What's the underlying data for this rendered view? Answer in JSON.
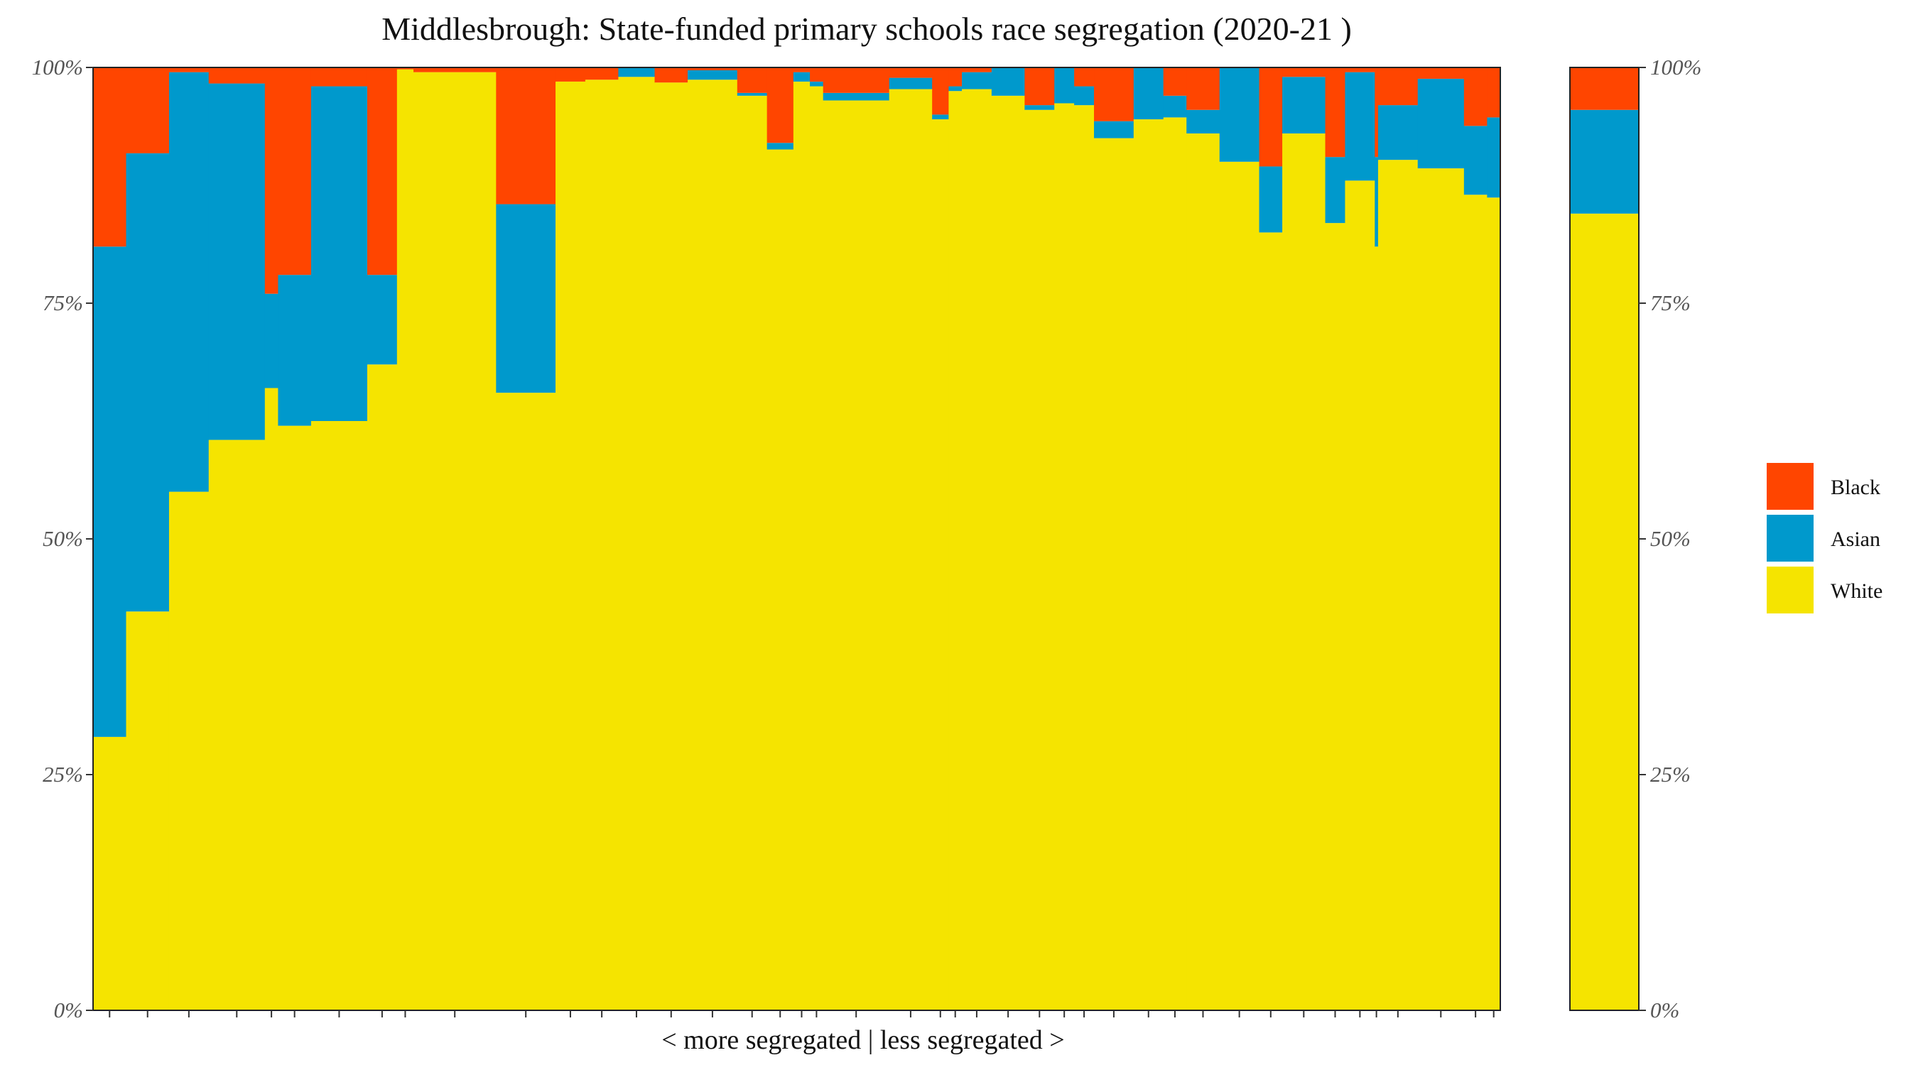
{
  "chart_data": {
    "type": "stacked-bar",
    "title": "Middlesbrough: State-funded primary schools race segregation (2020-21 )",
    "xlabel": "< more segregated | less segregated >",
    "ylabel": "",
    "ylim": [
      0,
      1
    ],
    "yticks": [
      "0%",
      "25%",
      "50%",
      "75%",
      "100%"
    ],
    "legend": {
      "placement": "right",
      "entries": [
        {
          "name": "Black",
          "color": "#FF4500"
        },
        {
          "name": "Asian",
          "color": "#0099CC"
        },
        {
          "name": "White",
          "color": "#F5E400"
        }
      ]
    },
    "colors": {
      "black": "#FF4500",
      "asian": "#0099CC",
      "white": "#F5E400"
    },
    "schools": [
      {
        "w": 1.0,
        "white": 0.29,
        "asian": 0.52,
        "black": 0.19
      },
      {
        "w": 1.3,
        "white": 0.423,
        "asian": 0.486,
        "black": 0.091
      },
      {
        "w": 1.2,
        "white": 0.55,
        "asian": 0.445,
        "black": 0.005
      },
      {
        "w": 1.7,
        "white": 0.605,
        "asian": 0.378,
        "black": 0.017
      },
      {
        "w": 0.4,
        "white": 0.66,
        "asian": 0.1,
        "black": 0.24
      },
      {
        "w": 1.0,
        "white": 0.62,
        "asian": 0.16,
        "black": 0.22
      },
      {
        "w": 1.7,
        "white": 0.625,
        "asian": 0.355,
        "black": 0.02
      },
      {
        "w": 0.9,
        "white": 0.685,
        "asian": 0.095,
        "black": 0.22
      },
      {
        "w": 0.5,
        "white": 0.998,
        "asian": 0.0,
        "black": 0.002
      },
      {
        "w": 2.5,
        "white": 0.995,
        "asian": 0.0,
        "black": 0.005
      },
      {
        "w": 1.8,
        "white": 0.655,
        "asian": 0.2,
        "black": 0.145
      },
      {
        "w": 0.9,
        "white": 0.985,
        "asian": 0.0,
        "black": 0.015
      },
      {
        "w": 1.0,
        "white": 0.987,
        "asian": 0.0,
        "black": 0.013
      },
      {
        "w": 1.1,
        "white": 0.99,
        "asian": 0.01,
        "black": 0.0
      },
      {
        "w": 1.0,
        "white": 0.984,
        "asian": 0.0,
        "black": 0.016
      },
      {
        "w": 1.5,
        "white": 0.987,
        "asian": 0.01,
        "black": 0.003
      },
      {
        "w": 0.9,
        "white": 0.97,
        "asian": 0.003,
        "black": 0.027
      },
      {
        "w": 0.8,
        "white": 0.913,
        "asian": 0.007,
        "black": 0.08
      },
      {
        "w": 0.5,
        "white": 0.985,
        "asian": 0.01,
        "black": 0.005
      },
      {
        "w": 0.4,
        "white": 0.98,
        "asian": 0.005,
        "black": 0.015
      },
      {
        "w": 2.0,
        "white": 0.965,
        "asian": 0.008,
        "black": 0.027
      },
      {
        "w": 1.3,
        "white": 0.977,
        "asian": 0.012,
        "black": 0.011
      },
      {
        "w": 0.5,
        "white": 0.945,
        "asian": 0.005,
        "black": 0.05
      },
      {
        "w": 0.4,
        "white": 0.975,
        "asian": 0.005,
        "black": 0.02
      },
      {
        "w": 0.9,
        "white": 0.977,
        "asian": 0.018,
        "black": 0.005
      },
      {
        "w": 1.0,
        "white": 0.97,
        "asian": 0.03,
        "black": 0.0
      },
      {
        "w": 0.9,
        "white": 0.955,
        "asian": 0.005,
        "black": 0.04
      },
      {
        "w": 0.6,
        "white": 0.962,
        "asian": 0.038,
        "black": 0.0
      },
      {
        "w": 0.6,
        "white": 0.96,
        "asian": 0.02,
        "black": 0.02
      },
      {
        "w": 1.2,
        "white": 0.925,
        "asian": 0.018,
        "black": 0.057
      },
      {
        "w": 0.9,
        "white": 0.945,
        "asian": 0.055,
        "black": 0.0
      },
      {
        "w": 0.7,
        "white": 0.947,
        "asian": 0.023,
        "black": 0.03
      },
      {
        "w": 1.0,
        "white": 0.93,
        "asian": 0.025,
        "black": 0.045
      },
      {
        "w": 1.2,
        "white": 0.9,
        "asian": 0.1,
        "black": 0.0
      },
      {
        "w": 0.7,
        "white": 0.825,
        "asian": 0.07,
        "black": 0.105
      },
      {
        "w": 1.3,
        "white": 0.93,
        "asian": 0.06,
        "black": 0.01
      },
      {
        "w": 0.6,
        "white": 0.835,
        "asian": 0.07,
        "black": 0.095
      },
      {
        "w": 0.9,
        "white": 0.88,
        "asian": 0.115,
        "black": 0.005
      },
      {
        "w": 0.1,
        "white": 0.81,
        "asian": 0.095,
        "black": 0.095
      },
      {
        "w": 1.2,
        "white": 0.902,
        "asian": 0.058,
        "black": 0.04
      },
      {
        "w": 1.4,
        "white": 0.893,
        "asian": 0.095,
        "black": 0.012
      },
      {
        "w": 0.7,
        "white": 0.865,
        "asian": 0.073,
        "black": 0.062
      },
      {
        "w": 0.4,
        "white": 0.862,
        "asian": 0.085,
        "black": 0.053
      }
    ],
    "overall": {
      "label": "",
      "white": 0.845,
      "asian": 0.11,
      "black": 0.045
    }
  }
}
